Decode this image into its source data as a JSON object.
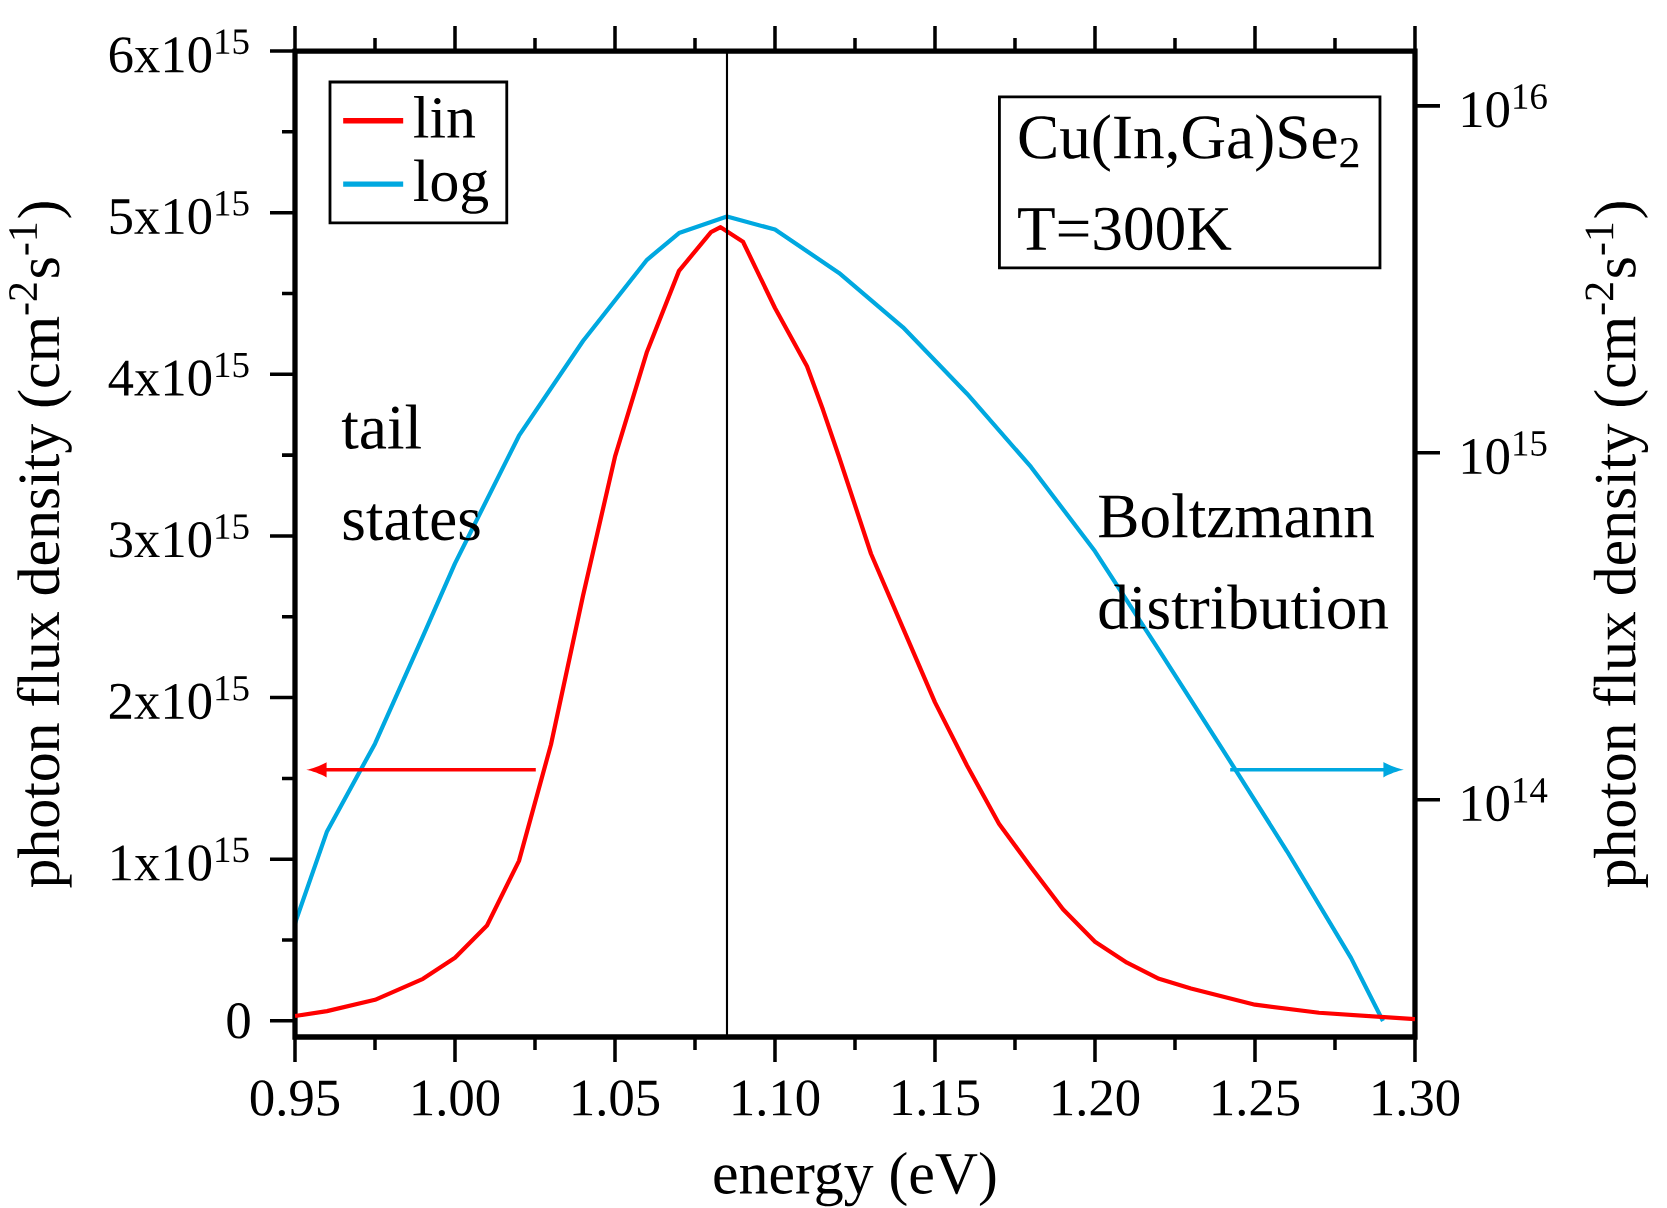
{
  "chart_data": {
    "type": "line",
    "xlabel": "energy (eV)",
    "ylabel": "photon flux density (cm$^{-2}$s$^{-1}$)",
    "y2label": "photon flux density (cm$^{-2}$s$^{-1}$)",
    "xlim": [
      0.95,
      1.3
    ],
    "xticks": [
      0.95,
      {
        "value": 1.0,
        "label": "1.00"
      },
      1.05,
      {
        "value": 1.1,
        "label": "1.10"
      },
      1.15,
      {
        "value": 1.2,
        "label": "1.20"
      },
      1.25,
      {
        "value": 1.3,
        "label": "1.30"
      }
    ],
    "ylim": [
      -100000000000000.0,
      6000000000000000.0
    ],
    "yticks": [
      0,
      {
        "value": 1000000000000000.0,
        "label": "1x10$^{15}$"
      },
      {
        "value": 2000000000000000.0,
        "label": "2x10$^{15}$"
      },
      {
        "value": 3000000000000000.0,
        "label": "3x10$^{15}$"
      },
      {
        "value": 4000000000000000.0,
        "label": "4x10$^{15}$"
      },
      {
        "value": 5000000000000000.0,
        "label": "5x10$^{15}$"
      },
      {
        "value": 6000000000000000.0,
        "label": "6x10$^{15}$"
      }
    ],
    "y2lim": [
      20700000000000.0,
      1.44e+16
    ],
    "y2ticks": [
      {
        "value": 100000000000000.0,
        "label": "10$^{14}$"
      },
      {
        "value": 1000000000000000.0,
        "label": "10$^{15}$"
      },
      {
        "value": 1e+16,
        "label": "10$^{16}$"
      }
    ],
    "log": "y2",
    "legend": "top left",
    "x": [
      0.95,
      0.96,
      0.975,
      0.99,
      1.0,
      1.01,
      1.02,
      1.03,
      1.04,
      1.05,
      1.06,
      1.07,
      1.08,
      1.083,
      1.09,
      1.1,
      1.11,
      1.115,
      1.12,
      1.13,
      1.14,
      1.15,
      1.16,
      1.17,
      1.18,
      1.19,
      1.2,
      1.21,
      1.22,
      1.23,
      1.25,
      1.27,
      1.3
    ],
    "series": [
      {
        "name": "lin",
        "color": "#ff0000",
        "values": [
          30000000000000.0,
          60000000000000.0,
          130000000000000.0,
          260000000000000.0,
          390000000000000.0,
          590000000000000.0,
          990000000000000.0,
          1710000000000000.0,
          2630000000000000.0,
          3490000000000000.0,
          4140000000000000.0,
          4640000000000000.0,
          4880000000000000.0,
          4910000000000000.0,
          4820000000000000.0,
          4410000000000000.0,
          4050000000000000.0,
          3780000000000000.0,
          3490000000000000.0,
          2890000000000000.0,
          2430000000000000.0,
          1970000000000000.0,
          1580000000000000.0,
          1220000000000000.0,
          950000000000000.0,
          690000000000000.0,
          490000000000000.0,
          360000000000000.0,
          260000000000000.0,
          200000000000000.0,
          100000000000000.0,
          50000000000000.0,
          10000000000000.0
        ]
      },
      {
        "name": "log",
        "color": "#00a8e0",
        "axis": "y2",
        "x": [
          0.95,
          0.96,
          0.975,
          0.99,
          1.0,
          1.02,
          1.04,
          1.06,
          1.07,
          1.085,
          1.1,
          1.12,
          1.14,
          1.16,
          1.18,
          1.2,
          1.22,
          1.24,
          1.26,
          1.28,
          1.29
        ],
        "values": [
          44000000000000.0,
          81000000000000.0,
          145000000000000.0,
          296000000000000.0,
          480000000000000.0,
          1120000000000000.0,
          2100000000000000.0,
          3600000000000000.0,
          4300000000000000.0,
          4800000000000000.0,
          4400000000000000.0,
          3300000000000000.0,
          2300000000000000.0,
          1480000000000000.0,
          910000000000000.0,
          520000000000000.0,
          270000000000000.0,
          139000000000000.0,
          71000000000000.0,
          35000000000000.0,
          23000000000000.0
        ]
      }
    ],
    "ref_lines": [
      {
        "axis": "x",
        "value": 1.085,
        "color": "#000000"
      }
    ],
    "annotations": [
      "tail states",
      "Boltzmann distribution",
      "Cu(In,Ga)Se$_{2}$",
      "T=300K"
    ]
  }
}
